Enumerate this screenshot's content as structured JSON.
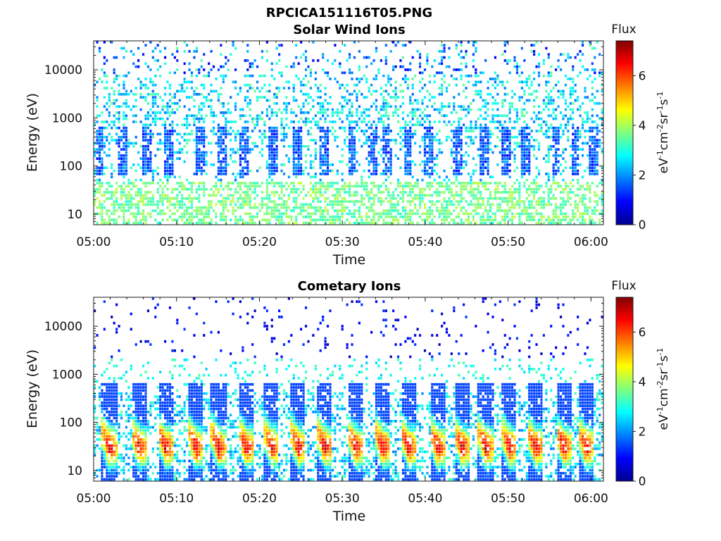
{
  "figure_title": "RPCICA151116T05.PNG",
  "colorbar": {
    "title": "Flux",
    "unit_prefix": "eV",
    "unit_label": "eV-1cm-2sr-1s-1",
    "ticks": [
      "0",
      "2",
      "4",
      "6"
    ],
    "range": [
      0,
      7.4
    ],
    "colormap": "jet"
  },
  "chart_data": [
    {
      "type": "heatmap",
      "title": "Solar Wind Ions",
      "xlabel": "Time",
      "ylabel": "Energy (eV)",
      "x_ticks": [
        "05:00",
        "05:10",
        "05:20",
        "05:30",
        "05:40",
        "05:50",
        "06:00"
      ],
      "x_range_minutes": [
        0,
        61.5
      ],
      "y_ticks": [
        "10",
        "100",
        "1000",
        "10000"
      ],
      "y_range": [
        6,
        40000
      ],
      "y_scale": "log",
      "z_range": [
        0,
        7.4
      ],
      "background_level": 2.6,
      "low_energy_level": 3.6,
      "bursts_minutes": [
        0.7,
        3.6,
        6.5,
        9.0,
        12.8,
        15.6,
        18.2,
        21.6,
        24.6,
        27.8,
        31.2,
        33.6,
        35.4,
        37.9,
        40.4,
        44.0,
        47.2,
        49.7,
        52.2,
        55.8,
        58.1,
        60.4
      ]
    },
    {
      "type": "heatmap",
      "title": "Cometary Ions",
      "xlabel": "Time",
      "ylabel": "Energy (eV)",
      "x_ticks": [
        "05:00",
        "05:10",
        "05:20",
        "05:30",
        "05:40",
        "05:50",
        "06:00"
      ],
      "x_range_minutes": [
        0,
        61.5
      ],
      "y_ticks": [
        "10",
        "100",
        "1000",
        "10000"
      ],
      "y_range": [
        6,
        40000
      ],
      "y_scale": "log",
      "z_range": [
        0,
        7.4
      ],
      "peak_level": 6.8,
      "peak_energy_ev": 30,
      "bursts_minutes": [
        1.9,
        5.5,
        8.7,
        12.3,
        15.1,
        18.4,
        21.5,
        24.7,
        27.9,
        31.6,
        34.9,
        38.0,
        41.5,
        44.4,
        47.3,
        50.2,
        53.3,
        56.7,
        59.4
      ]
    }
  ]
}
